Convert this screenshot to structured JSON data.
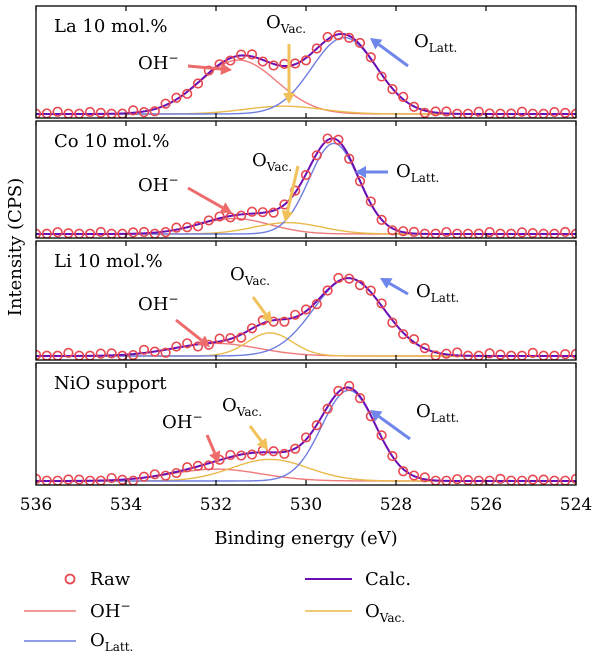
{
  "colors": {
    "raw": "#e8484f",
    "oh": "#ef7a7a",
    "latt": "#6f7de0",
    "vac": "#e9b94a",
    "calc": "#6a0fb3",
    "oh_arrow": "#ee6b6b",
    "latt_arrow": "#6f86ea",
    "vac_arrow": "#f1c25a"
  },
  "chart_data": {
    "type": "line",
    "xlabel": "Binding energy (eV)",
    "ylabel": "Intensity (CPS)",
    "xlim": [
      536,
      524
    ],
    "x_reversed": true,
    "xticks": [
      "536",
      "534",
      "532",
      "530",
      "528",
      "526",
      "524"
    ],
    "grid": false,
    "y_units": "arbitrary (normalized per panel, 0 = baseline, 1 = panel top)",
    "labels": {
      "oh": "OH",
      "oh_sup": "−",
      "o": "O",
      "vac_sub": "Vac.",
      "latt_sub": "Latt."
    },
    "legend": {
      "placement": "bottom",
      "raw": "Raw",
      "calc": "Calc.",
      "oh": "OH",
      "oh_sup": "−",
      "latt": "O",
      "latt_sub": "Latt.",
      "vac": "O",
      "vac_sub": "Vac."
    },
    "panels": [
      {
        "label": "La 10 mol.%",
        "components": [
          {
            "key": "oh",
            "center": 531.5,
            "width": 0.85,
            "height": 0.55
          },
          {
            "key": "vac",
            "center": 530.5,
            "width": 0.85,
            "height": 0.08
          },
          {
            "key": "latt",
            "center": 529.15,
            "width": 0.72,
            "height": 0.78
          }
        ],
        "raw_offset": 0.025
      },
      {
        "label": "Co 10 mol.%",
        "components": [
          {
            "key": "oh",
            "center": 531.6,
            "width": 0.8,
            "height": 0.15
          },
          {
            "key": "vac",
            "center": 530.4,
            "width": 0.75,
            "height": 0.11
          },
          {
            "key": "latt",
            "center": 529.38,
            "width": 0.55,
            "height": 0.88
          }
        ],
        "raw_offset": 0.02
      },
      {
        "label": "Li 10 mol.%",
        "components": [
          {
            "key": "oh",
            "center": 532.0,
            "width": 0.95,
            "height": 0.12
          },
          {
            "key": "vac",
            "center": 530.8,
            "width": 0.5,
            "height": 0.22
          },
          {
            "key": "latt",
            "center": 529.05,
            "width": 0.78,
            "height": 0.74
          }
        ],
        "raw_offset": 0.03
      },
      {
        "label": "NiO support",
        "components": [
          {
            "key": "oh",
            "center": 532.0,
            "width": 1.0,
            "height": 0.11
          },
          {
            "key": "vac",
            "center": 530.8,
            "width": 0.85,
            "height": 0.2
          },
          {
            "key": "latt",
            "center": 529.05,
            "width": 0.6,
            "height": 0.84
          }
        ],
        "raw_offset": 0.02
      }
    ]
  }
}
